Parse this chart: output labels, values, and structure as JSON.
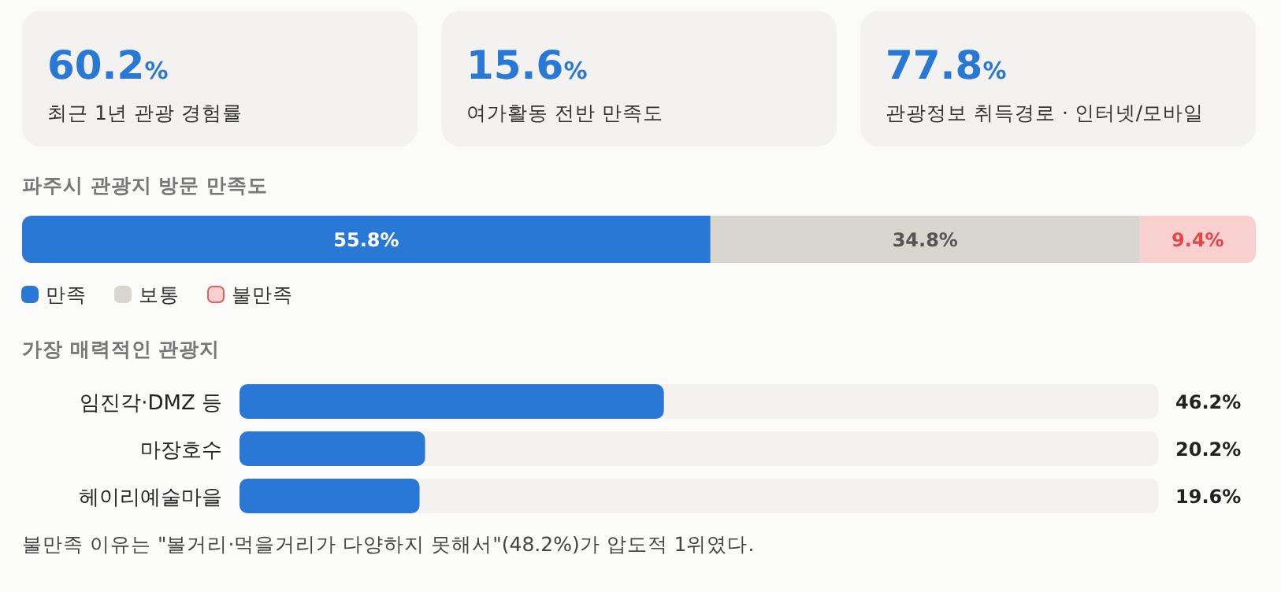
{
  "chart_data": [
    {
      "type": "other",
      "annotations": [
        "60.2%",
        "최근 1년 관광 경험률",
        "15.6%",
        "여가활동 전반 만족도",
        "77.8%",
        "관광정보 취득경로 · 인터넷/모바일"
      ]
    },
    {
      "type": "bar",
      "title": "파주시 관광지 방문 만족도",
      "orientation": "horizontal",
      "stacked": true,
      "xlim": [
        0,
        100
      ],
      "categories": [
        null
      ],
      "legend": "bottom left",
      "series": [
        {
          "name": "만족",
          "color": "#2a78d6",
          "values": [
            55.8
          ],
          "value_labels": [
            "55.8%"
          ]
        },
        {
          "name": "보통",
          "color": "#d8d6cf",
          "values": [
            34.8
          ],
          "value_labels": [
            "34.8%"
          ]
        },
        {
          "name": "불만족",
          "color": "#f8d0d0",
          "values": [
            9.4
          ],
          "value_labels": [
            "9.4%"
          ]
        }
      ]
    },
    {
      "type": "bar",
      "title": "가장 매력적인 관광지",
      "orientation": "horizontal",
      "xlim": [
        0,
        100
      ],
      "tick_labels": "y",
      "categories": [
        "임진각·DMZ 등",
        "마장호수",
        "헤이리예술마을"
      ],
      "color": "#2a78d6",
      "values": [
        46.2,
        20.2,
        19.6
      ],
      "value_labels": [
        "46.2%",
        "20.2%",
        "19.6%"
      ],
      "annotations": [
        "불만족 이유는 \"볼거리·먹을거리가 다양하지 못해서\"(48.2%)가 압도적 1위였다."
      ]
    }
  ]
}
